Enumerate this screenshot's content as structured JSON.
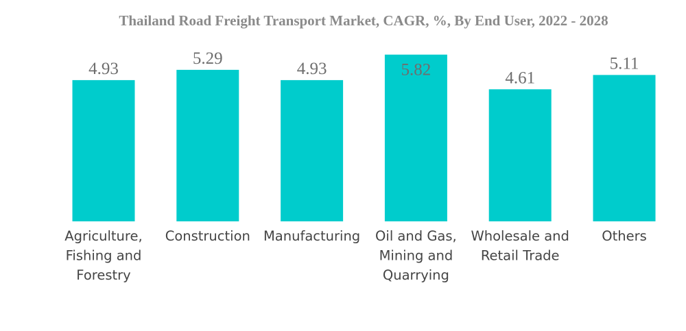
{
  "chart_data": {
    "type": "bar",
    "title": "Thailand Road Freight Transport Market, CAGR, %, By End User, 2022 - 2028",
    "xlabel": "",
    "ylabel": "",
    "ylim": [
      0,
      6.5
    ],
    "grid": false,
    "legend": "none",
    "bar_color": "#00CCCC",
    "categories": [
      "Agriculture, Fishing and Forestry",
      "Construction",
      "Manufacturing",
      "Oil and Gas, Mining and Quarrying",
      "Wholesale and Retail Trade",
      "Others"
    ],
    "category_lines": [
      [
        "Agriculture,",
        "Fishing and",
        "Forestry"
      ],
      [
        "Construction"
      ],
      [
        "Manufacturing"
      ],
      [
        "Oil and Gas,",
        "Mining and",
        "Quarrying"
      ],
      [
        "Wholesale and",
        "Retail Trade"
      ],
      [
        "Others"
      ]
    ],
    "values": [
      4.93,
      5.29,
      4.93,
      5.82,
      4.61,
      5.11
    ],
    "value_labels": [
      "4.93",
      "5.29",
      "4.93",
      "5.82",
      "4.61",
      "5.11"
    ]
  }
}
